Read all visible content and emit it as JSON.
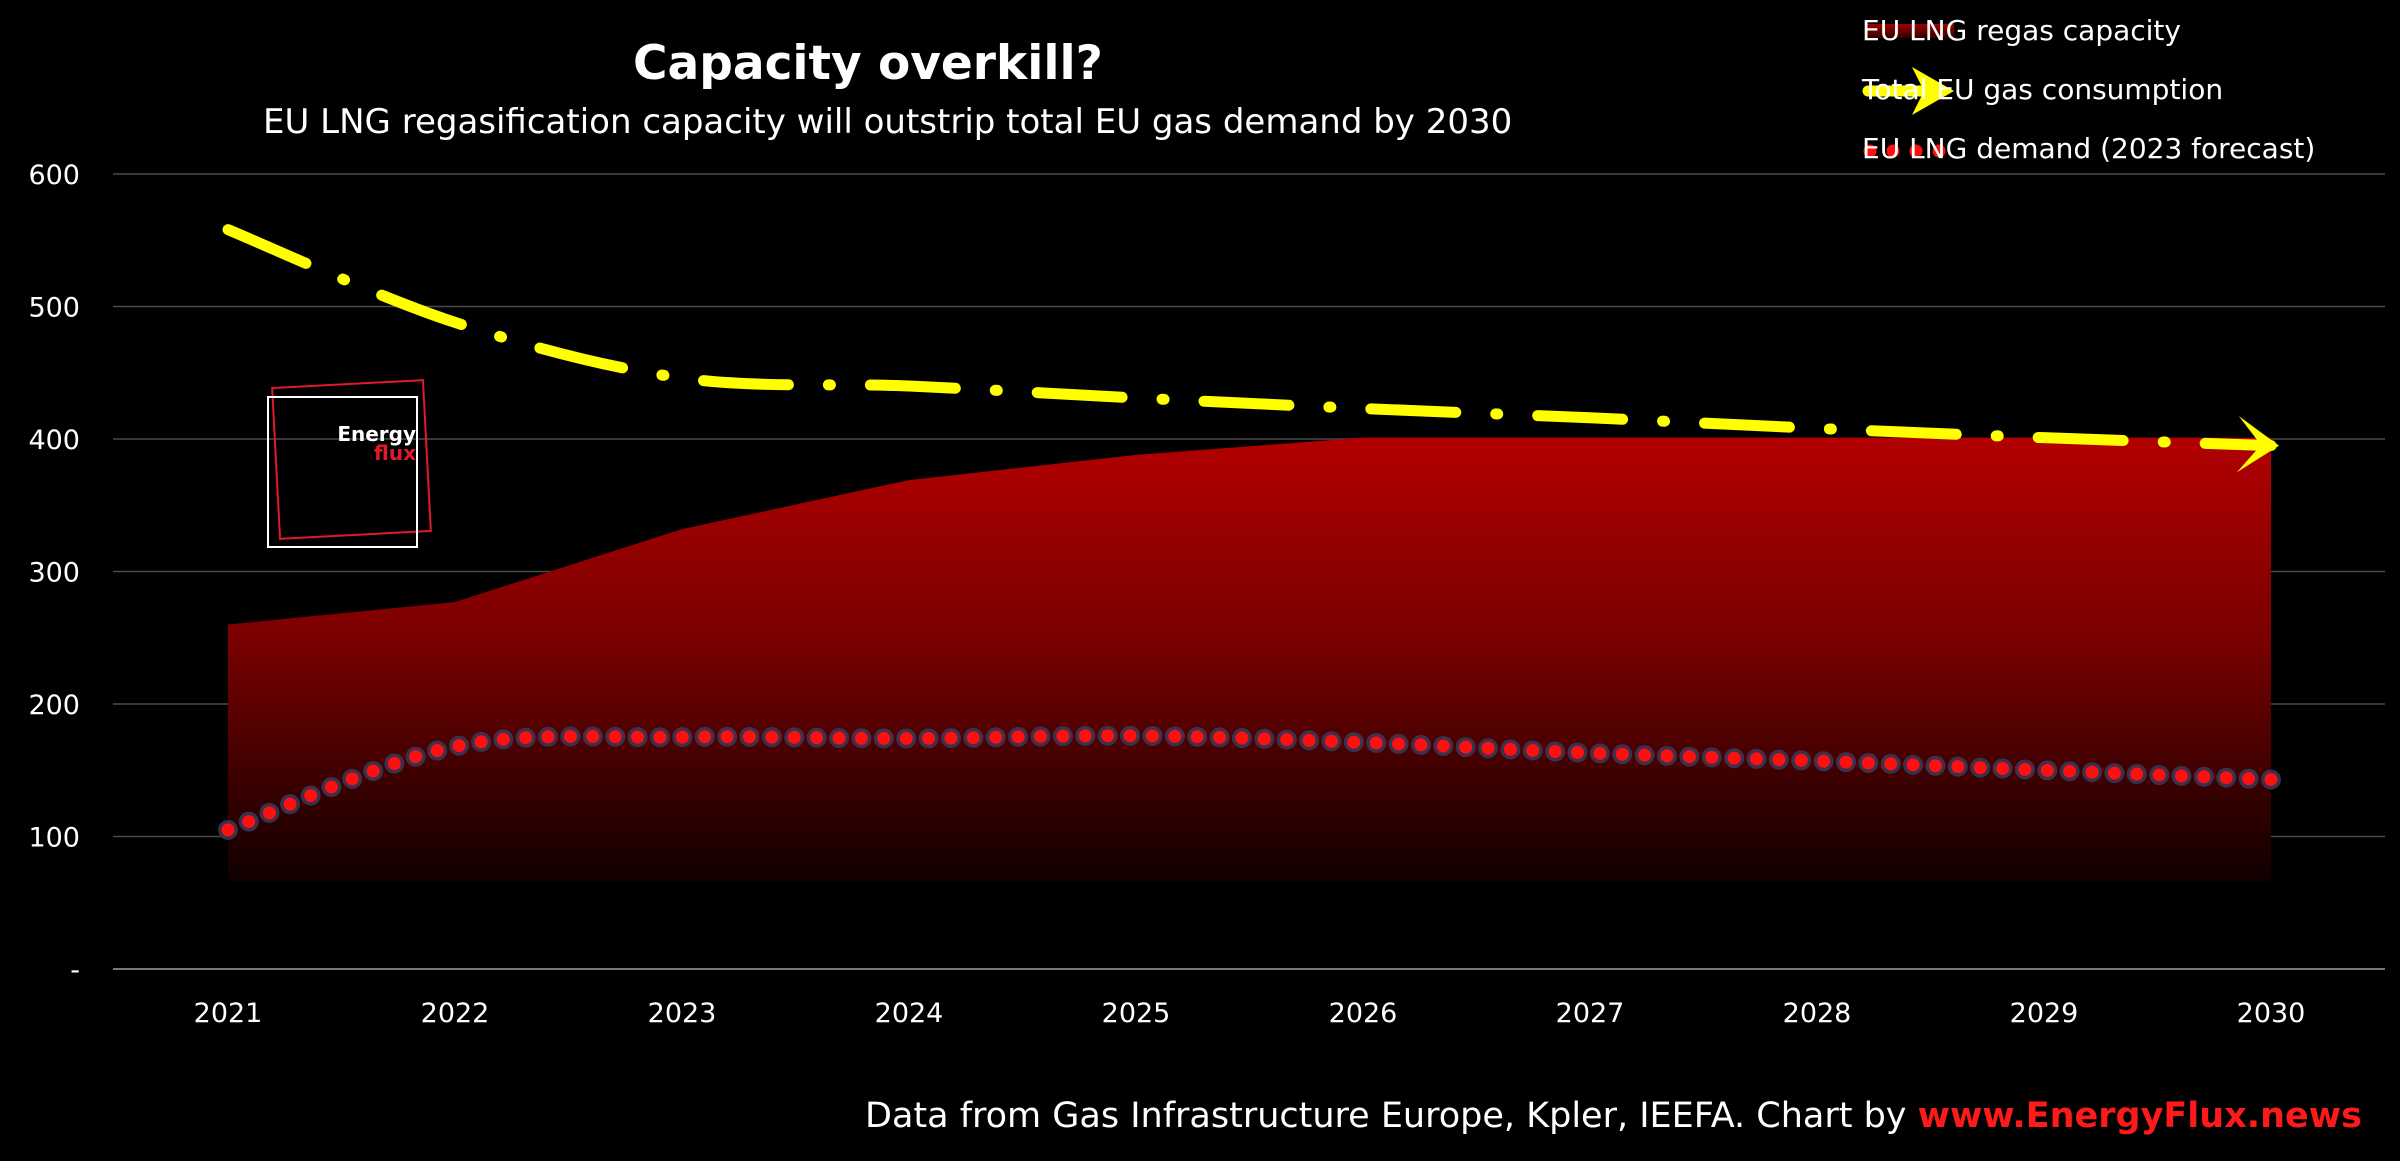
{
  "chart_data": {
    "type": "area",
    "title": "Capacity overkill?",
    "subtitle": "EU LNG regasification capacity will outstrip total EU gas demand by 2030",
    "x": [
      2021,
      2022,
      2023,
      2024,
      2025,
      2026,
      2027,
      2028,
      2029,
      2030
    ],
    "y_ticks": [
      "-",
      "100",
      "200",
      "300",
      "400",
      "500",
      "600"
    ],
    "ylim": [
      0,
      600
    ],
    "grid": true,
    "legend_position": "top-right",
    "series": [
      {
        "name": "EU LNG regas capacity",
        "style": "area",
        "color": "#b00000",
        "values": [
          260,
          277,
          332,
          369,
          388,
          401,
          401,
          401,
          401,
          401
        ]
      },
      {
        "name": "Total EU gas consumption",
        "style": "dash-dot line with arrow",
        "color": "#ffff00",
        "values": [
          558,
          488,
          446,
          440,
          431,
          423,
          416,
          408,
          401,
          395
        ]
      },
      {
        "name": "EU LNG demand (2023 forecast)",
        "style": "dotted line",
        "color": "#ff0000",
        "values": [
          105,
          168,
          175,
          174,
          176,
          171,
          163,
          157,
          150,
          143
        ]
      }
    ]
  },
  "logo": {
    "line1": "Energy",
    "line2": "flux"
  },
  "footer": {
    "source_text": "Data from Gas Infrastructure Europe, Kpler, IEEFA. Chart by ",
    "link_text": "www.EnergyFlux.news"
  }
}
